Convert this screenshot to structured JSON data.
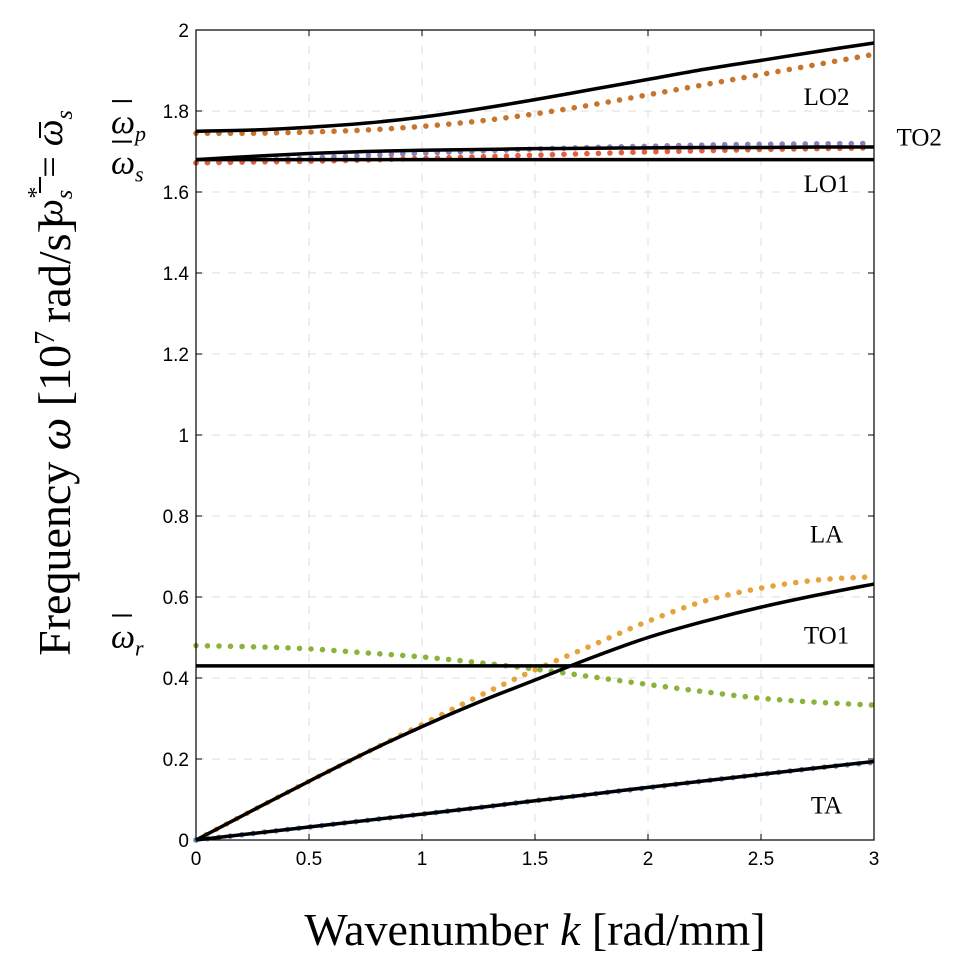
{
  "chart_data": {
    "type": "line",
    "title": "",
    "xlabel": {
      "text": "Wavenumber",
      "symbol": "k",
      "unit": "[rad/mm]"
    },
    "ylabel": {
      "text": "Frequency",
      "symbol": "ω",
      "unit_open": "[10",
      "unit_exp": "7",
      "unit_close": "rad/s]"
    },
    "xlim": [
      0,
      3
    ],
    "ylim": [
      0,
      2
    ],
    "xticks": [
      {
        "v": 0,
        "label": "0"
      },
      {
        "v": 0.5,
        "label": "0.5"
      },
      {
        "v": 1,
        "label": "1"
      },
      {
        "v": 1.5,
        "label": "1.5"
      },
      {
        "v": 2,
        "label": "2"
      },
      {
        "v": 2.5,
        "label": "2.5"
      },
      {
        "v": 3,
        "label": "3"
      }
    ],
    "yticks": [
      {
        "v": 0,
        "label": "0"
      },
      {
        "v": 0.2,
        "label": "0.2"
      },
      {
        "v": 0.4,
        "label": "0.4"
      },
      {
        "v": 0.6,
        "label": "0.6"
      },
      {
        "v": 0.8,
        "label": "0.8"
      },
      {
        "v": 1,
        "label": "1"
      },
      {
        "v": 1.2,
        "label": "1.2"
      },
      {
        "v": 1.4,
        "label": "1.4"
      },
      {
        "v": 1.6,
        "label": "1.6"
      },
      {
        "v": 1.8,
        "label": "1.8"
      },
      {
        "v": 2,
        "label": "2"
      }
    ],
    "grid": true,
    "x": [
      0,
      0.25,
      0.5,
      0.75,
      1.0,
      1.25,
      1.5,
      1.75,
      2.0,
      2.25,
      2.5,
      2.75,
      3.0
    ],
    "series": [
      {
        "style": "solid",
        "color": "#000000",
        "values": [
          1.75,
          1.753,
          1.76,
          1.77,
          1.785,
          1.805,
          1.828,
          1.853,
          1.878,
          1.903,
          1.925,
          1.947,
          1.968
        ]
      },
      {
        "style": "solid",
        "color": "#000000",
        "values": [
          1.68,
          1.688,
          1.695,
          1.7,
          1.703,
          1.705,
          1.707,
          1.708,
          1.709,
          1.71,
          1.71,
          1.711,
          1.711
        ]
      },
      {
        "style": "solid",
        "color": "#000000",
        "values": [
          1.68,
          1.68,
          1.68,
          1.68,
          1.68,
          1.68,
          1.68,
          1.68,
          1.68,
          1.68,
          1.68,
          1.68,
          1.68
        ]
      },
      {
        "style": "solid",
        "color": "#000000",
        "values": [
          0,
          0.073,
          0.145,
          0.215,
          0.28,
          0.34,
          0.395,
          0.45,
          0.5,
          0.54,
          0.575,
          0.605,
          0.632
        ]
      },
      {
        "style": "solid",
        "color": "#000000",
        "values": [
          0.43,
          0.43,
          0.43,
          0.43,
          0.43,
          0.43,
          0.43,
          0.43,
          0.43,
          0.43,
          0.43,
          0.43,
          0.43
        ]
      },
      {
        "style": "solid",
        "color": "#000000",
        "values": [
          0,
          0.016,
          0.032,
          0.048,
          0.064,
          0.08,
          0.097,
          0.113,
          0.13,
          0.146,
          0.162,
          0.178,
          0.194
        ]
      },
      {
        "style": "dotted",
        "color": "#C8742C",
        "values": [
          1.745,
          1.745,
          1.748,
          1.753,
          1.762,
          1.775,
          1.793,
          1.815,
          1.84,
          1.865,
          1.89,
          1.915,
          1.94
        ]
      },
      {
        "style": "dotted",
        "color": "#8C7FC0",
        "values": [
          1.672,
          1.677,
          1.684,
          1.69,
          1.696,
          1.701,
          1.706,
          1.71,
          1.713,
          1.716,
          1.718,
          1.719,
          1.72
        ]
      },
      {
        "style": "dotted",
        "color": "#E26040",
        "values": [
          1.672,
          1.674,
          1.676,
          1.679,
          1.683,
          1.687,
          1.691,
          1.695,
          1.699,
          1.702,
          1.705,
          1.707,
          1.709
        ]
      },
      {
        "style": "dotted",
        "color": "#E6A33C",
        "values": [
          0,
          0.073,
          0.145,
          0.215,
          0.285,
          0.355,
          0.42,
          0.48,
          0.54,
          0.59,
          0.622,
          0.642,
          0.65
        ]
      },
      {
        "style": "dotted",
        "color": "#8BB33C",
        "values": [
          0.48,
          0.477,
          0.472,
          0.462,
          0.452,
          0.438,
          0.422,
          0.403,
          0.384,
          0.366,
          0.35,
          0.34,
          0.333
        ]
      },
      {
        "style": "dotted",
        "color": "#5F87C0",
        "values": [
          0,
          0.016,
          0.032,
          0.048,
          0.064,
          0.08,
          0.097,
          0.113,
          0.129,
          0.146,
          0.162,
          0.178,
          0.192
        ]
      }
    ],
    "curve_labels": [
      {
        "text": "LO2",
        "x": 2.79,
        "y": 1.815
      },
      {
        "text": "TO2",
        "x": 3.2,
        "y": 1.715
      },
      {
        "text": "LO1",
        "x": 2.79,
        "y": 1.6
      },
      {
        "text": "LA",
        "x": 2.79,
        "y": 0.735
      },
      {
        "text": "TO1",
        "x": 2.79,
        "y": 0.485
      },
      {
        "text": "TA",
        "x": 2.79,
        "y": 0.065
      }
    ],
    "symbol_labels": [
      {
        "base": "ω",
        "sub": "p",
        "y": 1.77
      },
      {
        "base": "ω",
        "sub": "s",
        "y": 1.67
      },
      {
        "base": "ω",
        "sub": "r",
        "y": 0.5
      }
    ],
    "vertical_label": {
      "base": "ω",
      "sub": "s",
      "sup": "*",
      "eq": "=",
      "rhs_base": "ω",
      "rhs_sub": "s"
    }
  }
}
